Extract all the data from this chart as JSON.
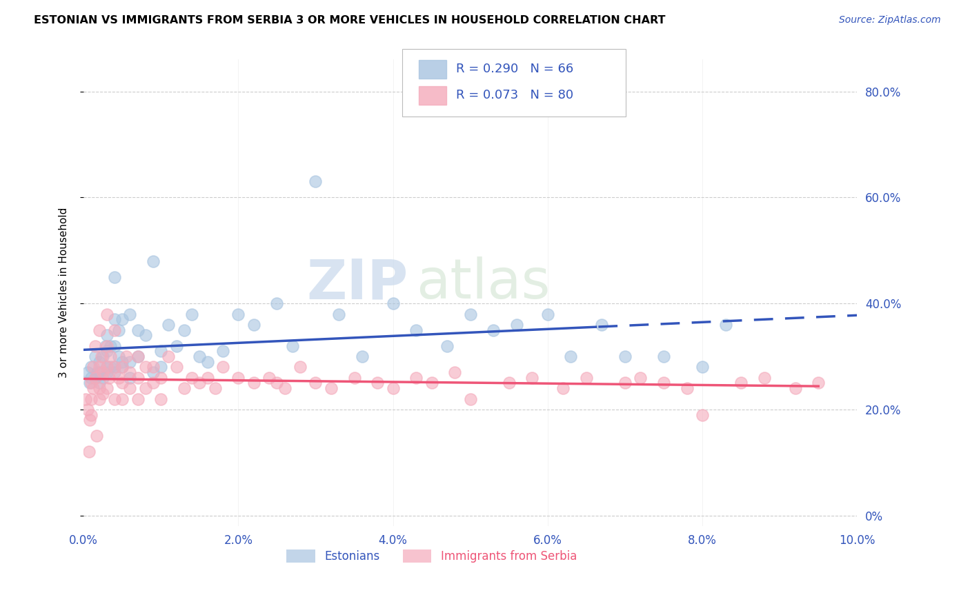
{
  "title": "ESTONIAN VS IMMIGRANTS FROM SERBIA 3 OR MORE VEHICLES IN HOUSEHOLD CORRELATION CHART",
  "source": "Source: ZipAtlas.com",
  "ylabel": "3 or more Vehicles in Household",
  "xlim": [
    0.0,
    0.1
  ],
  "ylim": [
    -0.02,
    0.86
  ],
  "yticks": [
    0.0,
    0.2,
    0.4,
    0.6,
    0.8
  ],
  "xticks": [
    0.0,
    0.02,
    0.04,
    0.06,
    0.08,
    0.1
  ],
  "xtick_labels": [
    "0.0%",
    "2.0%",
    "4.0%",
    "6.0%",
    "8.0%",
    "10.0%"
  ],
  "ytick_labels": [
    "0%",
    "20.0%",
    "40.0%",
    "60.0%",
    "80.0%"
  ],
  "legend1_label": "Estonians",
  "legend2_label": "Immigrants from Serbia",
  "R_blue": 0.29,
  "N_blue": 66,
  "R_pink": 0.073,
  "N_pink": 80,
  "blue_color": "#A8C4E0",
  "pink_color": "#F4AABB",
  "trend_blue": "#3355BB",
  "trend_pink": "#EE5577",
  "watermark_zip": "ZIP",
  "watermark_atlas": "atlas",
  "blue_x": [
    0.0005,
    0.001,
    0.001,
    0.0015,
    0.0015,
    0.002,
    0.002,
    0.002,
    0.0025,
    0.0025,
    0.003,
    0.003,
    0.003,
    0.003,
    0.0035,
    0.0035,
    0.004,
    0.004,
    0.004,
    0.004,
    0.0045,
    0.0045,
    0.005,
    0.005,
    0.005,
    0.006,
    0.006,
    0.007,
    0.007,
    0.008,
    0.009,
    0.01,
    0.01,
    0.011,
    0.012,
    0.013,
    0.014,
    0.015,
    0.016,
    0.018,
    0.02,
    0.022,
    0.025,
    0.027,
    0.03,
    0.033,
    0.036,
    0.04,
    0.043,
    0.047,
    0.05,
    0.053,
    0.056,
    0.06,
    0.063,
    0.067,
    0.07,
    0.075,
    0.08,
    0.083,
    0.0008,
    0.0018,
    0.0028,
    0.004,
    0.006,
    0.009
  ],
  "blue_y": [
    0.27,
    0.28,
    0.26,
    0.3,
    0.26,
    0.25,
    0.27,
    0.29,
    0.26,
    0.3,
    0.28,
    0.31,
    0.27,
    0.34,
    0.28,
    0.32,
    0.45,
    0.28,
    0.32,
    0.27,
    0.35,
    0.3,
    0.37,
    0.29,
    0.28,
    0.38,
    0.29,
    0.35,
    0.3,
    0.34,
    0.48,
    0.31,
    0.28,
    0.36,
    0.32,
    0.35,
    0.38,
    0.3,
    0.29,
    0.31,
    0.38,
    0.36,
    0.4,
    0.32,
    0.63,
    0.38,
    0.3,
    0.4,
    0.35,
    0.32,
    0.38,
    0.35,
    0.36,
    0.38,
    0.3,
    0.36,
    0.3,
    0.3,
    0.28,
    0.36,
    0.25,
    0.27,
    0.32,
    0.37,
    0.26,
    0.27
  ],
  "pink_x": [
    0.0003,
    0.0005,
    0.0008,
    0.001,
    0.001,
    0.001,
    0.0012,
    0.0012,
    0.0015,
    0.0015,
    0.002,
    0.002,
    0.002,
    0.002,
    0.0023,
    0.0025,
    0.0025,
    0.003,
    0.003,
    0.003,
    0.003,
    0.0033,
    0.0035,
    0.004,
    0.004,
    0.004,
    0.0045,
    0.005,
    0.005,
    0.005,
    0.0055,
    0.006,
    0.006,
    0.007,
    0.007,
    0.007,
    0.008,
    0.008,
    0.009,
    0.009,
    0.01,
    0.01,
    0.011,
    0.012,
    0.013,
    0.014,
    0.015,
    0.016,
    0.017,
    0.018,
    0.02,
    0.022,
    0.024,
    0.025,
    0.026,
    0.028,
    0.03,
    0.032,
    0.035,
    0.038,
    0.04,
    0.043,
    0.045,
    0.048,
    0.05,
    0.055,
    0.058,
    0.062,
    0.065,
    0.07,
    0.072,
    0.075,
    0.078,
    0.08,
    0.085,
    0.088,
    0.092,
    0.095,
    0.0007,
    0.0017
  ],
  "pink_y": [
    0.22,
    0.2,
    0.18,
    0.25,
    0.22,
    0.19,
    0.28,
    0.24,
    0.32,
    0.26,
    0.35,
    0.28,
    0.24,
    0.22,
    0.3,
    0.27,
    0.23,
    0.38,
    0.32,
    0.28,
    0.24,
    0.26,
    0.3,
    0.35,
    0.28,
    0.22,
    0.26,
    0.28,
    0.25,
    0.22,
    0.3,
    0.27,
    0.24,
    0.3,
    0.26,
    0.22,
    0.28,
    0.24,
    0.28,
    0.25,
    0.26,
    0.22,
    0.3,
    0.28,
    0.24,
    0.26,
    0.25,
    0.26,
    0.24,
    0.28,
    0.26,
    0.25,
    0.26,
    0.25,
    0.24,
    0.28,
    0.25,
    0.24,
    0.26,
    0.25,
    0.24,
    0.26,
    0.25,
    0.27,
    0.22,
    0.25,
    0.26,
    0.24,
    0.26,
    0.25,
    0.26,
    0.25,
    0.24,
    0.19,
    0.25,
    0.26,
    0.24,
    0.25,
    0.12,
    0.15
  ]
}
